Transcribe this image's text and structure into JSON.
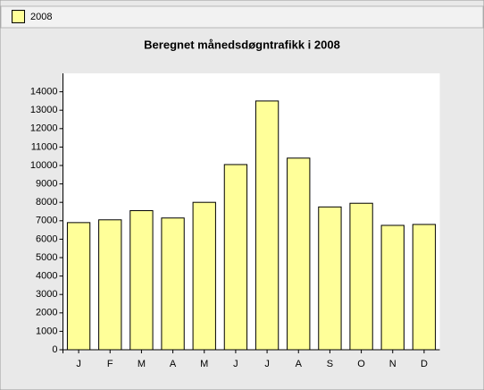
{
  "chart_data": {
    "type": "bar",
    "title": "Beregnet månedsdøgntrafikk i 2008",
    "categories": [
      "J",
      "F",
      "M",
      "A",
      "M",
      "J",
      "J",
      "A",
      "S",
      "O",
      "N",
      "D"
    ],
    "series": [
      {
        "name": "2008",
        "color": "#ffff99",
        "values": [
          6900,
          7050,
          7550,
          7150,
          8000,
          10050,
          13500,
          10400,
          7750,
          7950,
          6750,
          6800
        ]
      }
    ],
    "ylim": [
      0,
      15000
    ],
    "yticks": [
      0,
      1000,
      2000,
      3000,
      4000,
      5000,
      6000,
      7000,
      8000,
      9000,
      10000,
      11000,
      12000,
      13000,
      14000
    ],
    "grid": false,
    "legend": "top-left"
  }
}
